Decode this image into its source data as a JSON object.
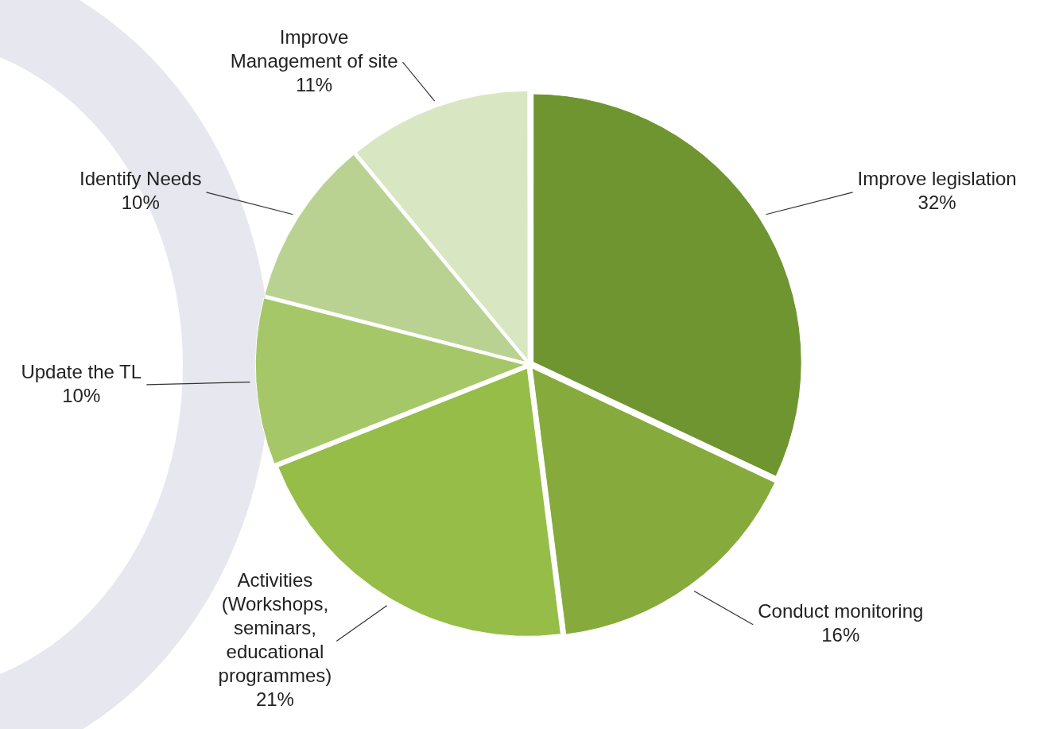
{
  "chart_data": {
    "type": "pie",
    "categories": [
      "Improve legislation",
      "Conduct monitoring",
      "Activities\n(Workshops,\nseminars,\neducational\nprogrammes)",
      "Update the TL",
      "Identify Needs",
      "Improve\nManagement of site"
    ],
    "values": [
      32,
      16,
      21,
      10,
      10,
      11
    ],
    "value_labels": [
      "32%",
      "16%",
      "21%",
      "10%",
      "10%",
      "11%"
    ],
    "colors": [
      "#6f9530",
      "#86ab3c",
      "#95bd48",
      "#a6c768",
      "#b9d292",
      "#d8e6c2"
    ],
    "legend": false
  }
}
